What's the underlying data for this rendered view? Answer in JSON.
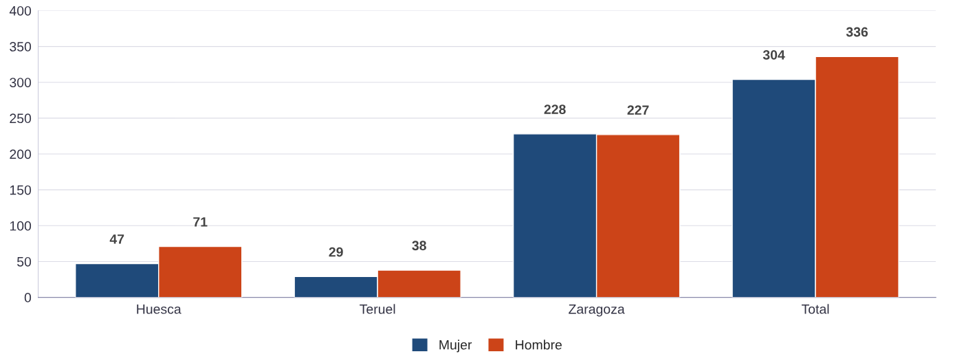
{
  "chart_data": {
    "type": "bar",
    "categories": [
      "Huesca",
      "Teruel",
      "Zaragoza",
      "Total"
    ],
    "series": [
      {
        "name": "Mujer",
        "color": "#1f4a7a",
        "values": [
          47,
          29,
          228,
          304
        ]
      },
      {
        "name": "Hombre",
        "color": "#cc4418",
        "values": [
          71,
          38,
          227,
          336
        ]
      }
    ],
    "ylim": [
      0,
      400
    ],
    "yticks": [
      0,
      50,
      100,
      150,
      200,
      250,
      300,
      350,
      400
    ],
    "grid": "y",
    "legend": "bottom",
    "data_labels": true
  }
}
